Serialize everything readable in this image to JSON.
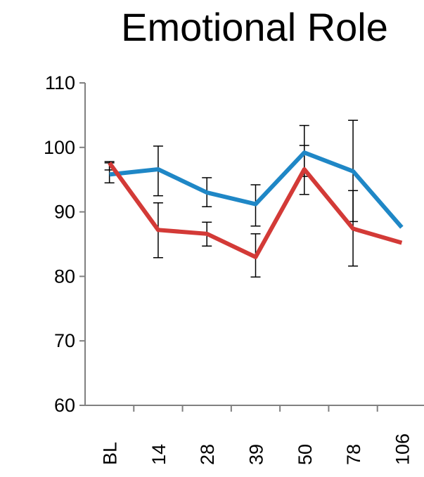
{
  "chart_data": {
    "type": "line",
    "title": "Emotional Role",
    "xlabel": "",
    "ylabel": "",
    "categories": [
      "BL",
      "14",
      "28",
      "39",
      "50",
      "78",
      "106"
    ],
    "ylim": [
      60,
      110
    ],
    "yticks": [
      "110",
      "100",
      "90",
      "80",
      "70",
      "60"
    ],
    "ytick_values": [
      110,
      100,
      90,
      80,
      70,
      60
    ],
    "grid": false,
    "legend": "none",
    "series": [
      {
        "color": "#1f87c6",
        "values": [
          95.8,
          96.6,
          93.0,
          91.2,
          99.2,
          96.3,
          87.6
        ],
        "errors": [
          {
            "low": 94.5,
            "high": 97.8
          },
          {
            "low": 92.5,
            "high": 100.2
          },
          {
            "low": 90.8,
            "high": 95.3
          },
          {
            "low": 87.8,
            "high": 94.2
          },
          {
            "low": 95.5,
            "high": 103.4
          },
          {
            "low": 88.5,
            "high": 104.2
          },
          null
        ]
      },
      {
        "color": "#d33a37",
        "values": [
          97.6,
          87.2,
          86.6,
          83.0,
          96.6,
          87.4,
          85.2
        ],
        "errors": [
          {
            "low": 96.5,
            "high": 97.6
          },
          {
            "low": 82.9,
            "high": 91.4
          },
          {
            "low": 84.7,
            "high": 88.4
          },
          {
            "low": 79.9,
            "high": 86.6
          },
          {
            "low": 92.7,
            "high": 100.3
          },
          {
            "low": 81.6,
            "high": 93.3
          },
          null
        ]
      }
    ]
  }
}
